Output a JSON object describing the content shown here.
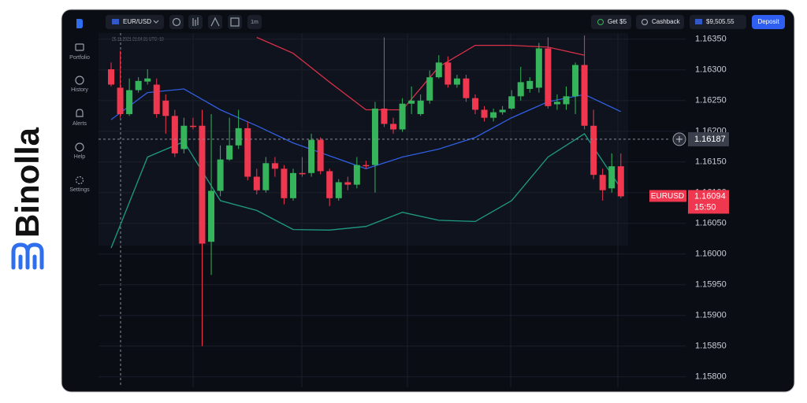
{
  "brand": {
    "name": "Binolla"
  },
  "sidebar": {
    "items": [
      "Portfolio",
      "History",
      "Alerts",
      "Help",
      "Settings"
    ]
  },
  "toolbar": {
    "symbol": "EUR/USD",
    "timeframe": "1m",
    "bonus": "Get $5",
    "cashback": "Cashback",
    "balance": "$9,505.55",
    "deposit": "Deposit"
  },
  "chart": {
    "timestamp": "25.11.2021  21:04:31  UTC+10",
    "ylim": [
      1.15783,
      1.1636
    ],
    "yticks": [
      {
        "value": 1.1635,
        "label": "1.16350"
      },
      {
        "value": 1.163,
        "label": "1.16300"
      },
      {
        "value": 1.1625,
        "label": "1.16250"
      },
      {
        "value": 1.162,
        "label": "1.16200"
      },
      {
        "value": 1.1615,
        "label": "1.16150"
      },
      {
        "value": 1.161,
        "label": "1.16100"
      },
      {
        "value": 1.1605,
        "label": "1.16050"
      },
      {
        "value": 1.16,
        "label": "1.16000"
      },
      {
        "value": 1.1595,
        "label": "1.15950"
      },
      {
        "value": 1.159,
        "label": "1.15900"
      },
      {
        "value": 1.1585,
        "label": "1.15850"
      },
      {
        "value": 1.158,
        "label": "1.15800"
      }
    ],
    "colors": {
      "up": "#35b45b",
      "down": "#ef3850",
      "upper": "#d9304a",
      "middle": "#2f5fe0",
      "lower": "#1e9c84"
    },
    "candles": [
      {
        "o": 1.16301,
        "h": 1.16312,
        "l": 1.16273,
        "c": 1.16276
      },
      {
        "o": 1.16271,
        "h": 1.16331,
        "l": 1.16222,
        "c": 1.16228
      },
      {
        "o": 1.16228,
        "h": 1.16286,
        "l": 1.16225,
        "c": 1.16267
      },
      {
        "o": 1.16267,
        "h": 1.16288,
        "l": 1.16263,
        "c": 1.16282
      },
      {
        "o": 1.16281,
        "h": 1.16301,
        "l": 1.16276,
        "c": 1.16286
      },
      {
        "o": 1.16276,
        "h": 1.16286,
        "l": 1.16222,
        "c": 1.16228
      },
      {
        "o": 1.1625,
        "h": 1.1626,
        "l": 1.16196,
        "c": 1.16225
      },
      {
        "o": 1.16225,
        "h": 1.16235,
        "l": 1.16158,
        "c": 1.16164
      },
      {
        "o": 1.16171,
        "h": 1.16222,
        "l": 1.16164,
        "c": 1.16209
      },
      {
        "o": 1.16209,
        "h": 1.16222,
        "l": 1.16203,
        "c": 1.16207
      },
      {
        "o": 1.16209,
        "h": 1.16235,
        "l": 1.1585,
        "c": 1.16017
      },
      {
        "o": 1.1602,
        "h": 1.16228,
        "l": 1.15966,
        "c": 1.16103
      },
      {
        "o": 1.16103,
        "h": 1.16177,
        "l": 1.16094,
        "c": 1.16154
      },
      {
        "o": 1.16154,
        "h": 1.16222,
        "l": 1.16152,
        "c": 1.16177
      },
      {
        "o": 1.16177,
        "h": 1.16235,
        "l": 1.16171,
        "c": 1.16205
      },
      {
        "o": 1.16205,
        "h": 1.16216,
        "l": 1.1612,
        "c": 1.16126
      },
      {
        "o": 1.16126,
        "h": 1.16139,
        "l": 1.16097,
        "c": 1.16104
      },
      {
        "o": 1.16104,
        "h": 1.16158,
        "l": 1.161,
        "c": 1.16148
      },
      {
        "o": 1.16148,
        "h": 1.16158,
        "l": 1.16126,
        "c": 1.16139
      },
      {
        "o": 1.16139,
        "h": 1.16145,
        "l": 1.16081,
        "c": 1.16091
      },
      {
        "o": 1.16091,
        "h": 1.16139,
        "l": 1.16087,
        "c": 1.16132
      },
      {
        "o": 1.16132,
        "h": 1.16158,
        "l": 1.16126,
        "c": 1.1613
      },
      {
        "o": 1.16132,
        "h": 1.16196,
        "l": 1.16126,
        "c": 1.16186
      },
      {
        "o": 1.16186,
        "h": 1.1619,
        "l": 1.1613,
        "c": 1.16135
      },
      {
        "o": 1.16135,
        "h": 1.16139,
        "l": 1.16078,
        "c": 1.16091
      },
      {
        "o": 1.16091,
        "h": 1.16122,
        "l": 1.16087,
        "c": 1.16117
      },
      {
        "o": 1.16117,
        "h": 1.16126,
        "l": 1.16104,
        "c": 1.16113
      },
      {
        "o": 1.16113,
        "h": 1.16158,
        "l": 1.16107,
        "c": 1.16145
      },
      {
        "o": 1.16145,
        "h": 1.16152,
        "l": 1.16139,
        "c": 1.16143
      },
      {
        "o": 1.16145,
        "h": 1.16248,
        "l": 1.161,
        "c": 1.16237
      },
      {
        "o": 1.16237,
        "h": 1.16353,
        "l": 1.16207,
        "c": 1.16212
      },
      {
        "o": 1.16212,
        "h": 1.16222,
        "l": 1.16196,
        "c": 1.16203
      },
      {
        "o": 1.16203,
        "h": 1.16254,
        "l": 1.16199,
        "c": 1.16245
      },
      {
        "o": 1.16245,
        "h": 1.16273,
        "l": 1.16228,
        "c": 1.1625
      },
      {
        "o": 1.16228,
        "h": 1.1626,
        "l": 1.16225,
        "c": 1.1625
      },
      {
        "o": 1.1625,
        "h": 1.16299,
        "l": 1.16245,
        "c": 1.16288
      },
      {
        "o": 1.16288,
        "h": 1.16324,
        "l": 1.16286,
        "c": 1.16312
      },
      {
        "o": 1.16312,
        "h": 1.16322,
        "l": 1.16271,
        "c": 1.16276
      },
      {
        "o": 1.16276,
        "h": 1.16292,
        "l": 1.16271,
        "c": 1.16286
      },
      {
        "o": 1.16286,
        "h": 1.16292,
        "l": 1.16248,
        "c": 1.16254
      },
      {
        "o": 1.16254,
        "h": 1.1626,
        "l": 1.16228,
        "c": 1.16235
      },
      {
        "o": 1.16235,
        "h": 1.16241,
        "l": 1.16216,
        "c": 1.16222
      },
      {
        "o": 1.16222,
        "h": 1.16237,
        "l": 1.16216,
        "c": 1.16231
      },
      {
        "o": 1.16231,
        "h": 1.16241,
        "l": 1.16227,
        "c": 1.16235
      },
      {
        "o": 1.16237,
        "h": 1.16267,
        "l": 1.16235,
        "c": 1.16257
      },
      {
        "o": 1.16257,
        "h": 1.16305,
        "l": 1.1625,
        "c": 1.1628
      },
      {
        "o": 1.16269,
        "h": 1.16288,
        "l": 1.16263,
        "c": 1.16282
      },
      {
        "o": 1.16271,
        "h": 1.16344,
        "l": 1.16263,
        "c": 1.16335
      },
      {
        "o": 1.16335,
        "h": 1.16353,
        "l": 1.16237,
        "c": 1.16241
      },
      {
        "o": 1.16244,
        "h": 1.1626,
        "l": 1.16235,
        "c": 1.16248
      },
      {
        "o": 1.16244,
        "h": 1.16273,
        "l": 1.16235,
        "c": 1.16257
      },
      {
        "o": 1.16257,
        "h": 1.16312,
        "l": 1.16228,
        "c": 1.16308
      },
      {
        "o": 1.16308,
        "h": 1.16356,
        "l": 1.16203,
        "c": 1.16209
      },
      {
        "o": 1.16209,
        "h": 1.16235,
        "l": 1.16122,
        "c": 1.16129
      },
      {
        "o": 1.16129,
        "h": 1.16139,
        "l": 1.16087,
        "c": 1.16104
      },
      {
        "o": 1.16107,
        "h": 1.16164,
        "l": 1.161,
        "c": 1.16143
      },
      {
        "o": 1.16143,
        "h": 1.16164,
        "l": 1.16091,
        "c": 1.16094
      }
    ],
    "bands": {
      "x": [
        0,
        4,
        8,
        12,
        16,
        20,
        24,
        28,
        32,
        36,
        40,
        44,
        48,
        52,
        56
      ],
      "upper": [
        null,
        null,
        null,
        null,
        1.16353,
        1.16327,
        1.1628,
        1.16235,
        1.16235,
        1.16305,
        1.1634,
        1.1634,
        1.16337,
        1.16324,
        null
      ],
      "middle": [
        1.16219,
        1.16263,
        1.16269,
        1.16235,
        1.16209,
        1.16181,
        1.1616,
        1.16139,
        1.16158,
        1.16171,
        1.1619,
        1.16222,
        1.16248,
        1.1626,
        1.16232
      ],
      "lower": [
        1.1601,
        1.16158,
        1.16183,
        1.16087,
        1.16071,
        1.1604,
        1.16039,
        1.16045,
        1.16068,
        1.16055,
        1.16053,
        1.16087,
        1.16158,
        1.16196,
        1.16107
      ]
    },
    "crosshair_price": 1.16187,
    "last_price": {
      "symbol": "EURUSD",
      "price": 1.16094,
      "timer": "15:50"
    }
  }
}
